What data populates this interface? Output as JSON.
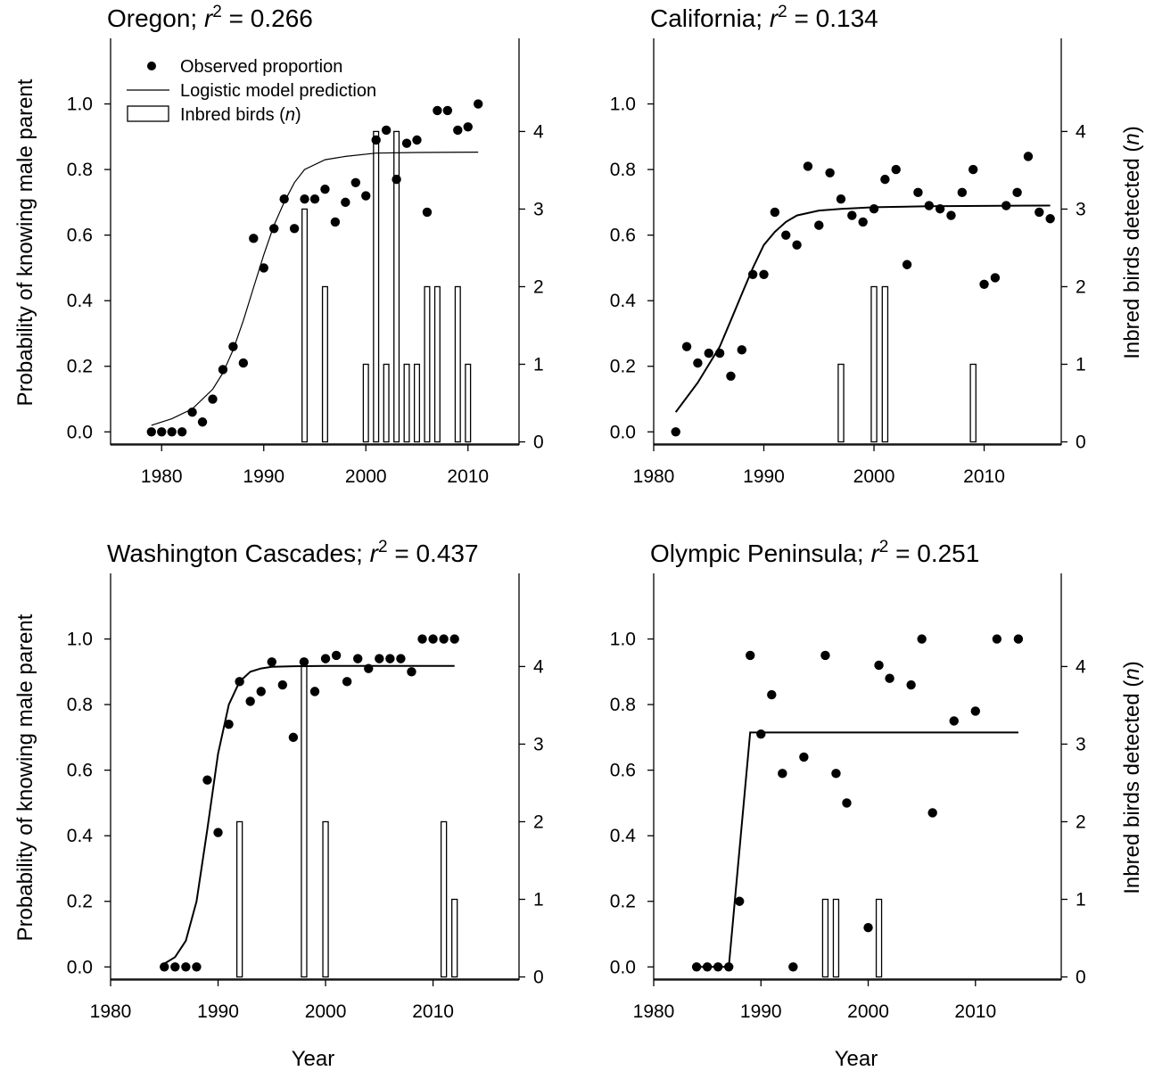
{
  "figure": {
    "colors": {
      "ink": "#000000",
      "bar_fill": "#ffffff",
      "background": "#ffffff"
    },
    "ylabel_left": "Probability of knowing male parent",
    "ylabel_right": "Inbred birds detected (n)",
    "xlabel": "Year"
  },
  "legend": {
    "items": [
      {
        "marker": "dot",
        "label": "Observed proportion"
      },
      {
        "marker": "line",
        "label": "Logistic model prediction"
      },
      {
        "marker": "bar",
        "label": "Inbred birds (n)"
      }
    ]
  },
  "chart_data": [
    {
      "type": "scatter",
      "region": "Oregon",
      "r2": "0.266",
      "title": "Oregon; r2 = 0.266",
      "xlim": [
        1975,
        2015
      ],
      "ylim": [
        -0.04,
        1.2
      ],
      "y2lim": [
        -0.04,
        5.2
      ],
      "xticks": [
        1980,
        1990,
        2000,
        2010
      ],
      "yticks": [
        0.0,
        0.2,
        0.4,
        0.6,
        0.8,
        1.0
      ],
      "y2ticks": [
        0,
        1,
        2,
        3,
        4
      ],
      "observed": {
        "x": [
          1979,
          1980,
          1981,
          1982,
          1983,
          1984,
          1985,
          1986,
          1987,
          1988,
          1989,
          1990,
          1991,
          1992,
          1993,
          1994,
          1995,
          1996,
          1997,
          1998,
          1999,
          2000,
          2001,
          2002,
          2003,
          2004,
          2005,
          2006,
          2007,
          2008,
          2009,
          2010,
          2011
        ],
        "y": [
          0.0,
          0.0,
          0.0,
          0.0,
          0.06,
          0.03,
          0.1,
          0.19,
          0.26,
          0.21,
          0.59,
          0.5,
          0.62,
          0.71,
          0.62,
          0.71,
          0.71,
          0.74,
          0.64,
          0.7,
          0.76,
          0.72,
          0.89,
          0.92,
          0.77,
          0.88,
          0.89,
          0.67,
          0.98,
          0.98,
          0.92,
          0.93,
          1.0
        ]
      },
      "model": {
        "x": [
          1979,
          1981,
          1983,
          1985,
          1986,
          1987,
          1988,
          1989,
          1990,
          1991,
          1992,
          1993,
          1994,
          1996,
          1998,
          2001,
          2005,
          2011
        ],
        "y": [
          0.02,
          0.04,
          0.07,
          0.13,
          0.18,
          0.25,
          0.34,
          0.44,
          0.54,
          0.63,
          0.7,
          0.76,
          0.8,
          0.83,
          0.84,
          0.85,
          0.852,
          0.853
        ]
      },
      "inbred": {
        "x": [
          1994,
          1996,
          2000,
          2001,
          2002,
          2003,
          2004,
          2005,
          2006,
          2007,
          2009,
          2010
        ],
        "n": [
          3,
          2,
          1,
          4,
          1,
          4,
          1,
          1,
          2,
          2,
          2,
          1
        ]
      }
    },
    {
      "type": "scatter",
      "region": "California",
      "r2": "0.134",
      "title": "California; r2 = 0.134",
      "xlim": [
        1980,
        2017
      ],
      "ylim": [
        -0.04,
        1.2
      ],
      "y2lim": [
        -0.04,
        5.2
      ],
      "xticks": [
        1980,
        1990,
        2000,
        2010
      ],
      "yticks": [
        0.0,
        0.2,
        0.4,
        0.6,
        0.8,
        1.0
      ],
      "y2ticks": [
        0,
        1,
        2,
        3,
        4
      ],
      "observed": {
        "x": [
          1982,
          1983,
          1984,
          1985,
          1986,
          1987,
          1988,
          1989,
          1990,
          1991,
          1992,
          1993,
          1994,
          1995,
          1996,
          1997,
          1998,
          1999,
          2000,
          2001,
          2002,
          2003,
          2004,
          2005,
          2006,
          2007,
          2008,
          2009,
          2010,
          2011,
          2012,
          2013,
          2014,
          2015,
          2016
        ],
        "y": [
          0.0,
          0.26,
          0.21,
          0.24,
          0.24,
          0.17,
          0.25,
          0.48,
          0.48,
          0.67,
          0.6,
          0.57,
          0.81,
          0.63,
          0.79,
          0.71,
          0.66,
          0.64,
          0.68,
          0.77,
          0.8,
          0.51,
          0.73,
          0.69,
          0.68,
          0.66,
          0.73,
          0.8,
          0.45,
          0.47,
          0.69,
          0.73,
          0.84,
          0.67,
          0.65
        ]
      },
      "model": {
        "x": [
          1982,
          1984,
          1986,
          1987,
          1988,
          1989,
          1990,
          1991,
          1992,
          1993,
          1995,
          1997,
          2000,
          2005,
          2010,
          2016
        ],
        "y": [
          0.06,
          0.15,
          0.26,
          0.34,
          0.42,
          0.5,
          0.57,
          0.61,
          0.64,
          0.66,
          0.675,
          0.68,
          0.685,
          0.688,
          0.689,
          0.69
        ]
      },
      "inbred": {
        "x": [
          1997,
          2000,
          2001,
          2009
        ],
        "n": [
          1,
          2,
          2,
          1
        ]
      }
    },
    {
      "type": "scatter",
      "region": "Washington Cascades",
      "r2": "0.437",
      "title": "Washington Cascades; r2 = 0.437",
      "xlim": [
        1980,
        2018
      ],
      "ylim": [
        -0.04,
        1.2
      ],
      "y2lim": [
        -0.04,
        5.2
      ],
      "xticks": [
        1980,
        1990,
        2000,
        2010
      ],
      "yticks": [
        0.0,
        0.2,
        0.4,
        0.6,
        0.8,
        1.0
      ],
      "y2ticks": [
        0,
        1,
        2,
        3,
        4
      ],
      "observed": {
        "x": [
          1985,
          1986,
          1987,
          1988,
          1989,
          1990,
          1991,
          1992,
          1993,
          1994,
          1995,
          1996,
          1997,
          1998,
          1999,
          2000,
          2001,
          2002,
          2003,
          2004,
          2005,
          2006,
          2007,
          2008,
          2009,
          2010,
          2011,
          2012
        ],
        "y": [
          0.0,
          0.0,
          0.0,
          0.0,
          0.57,
          0.41,
          0.74,
          0.87,
          0.81,
          0.84,
          0.93,
          0.86,
          0.7,
          0.93,
          0.84,
          0.94,
          0.95,
          0.87,
          0.94,
          0.91,
          0.94,
          0.94,
          0.94,
          0.9,
          1.0,
          1.0,
          1.0,
          1.0
        ]
      },
      "model": {
        "x": [
          1985,
          1986,
          1987,
          1988,
          1989,
          1990,
          1991,
          1992,
          1993,
          1994,
          1995,
          1997,
          2000,
          2005,
          2012
        ],
        "y": [
          0.01,
          0.03,
          0.08,
          0.2,
          0.42,
          0.65,
          0.8,
          0.87,
          0.9,
          0.91,
          0.915,
          0.917,
          0.918,
          0.918,
          0.918
        ]
      },
      "inbred": {
        "x": [
          1992,
          1998,
          2000,
          2011,
          2012
        ],
        "n": [
          2,
          4,
          2,
          2,
          1
        ]
      }
    },
    {
      "type": "scatter",
      "region": "Olympic Peninsula",
      "r2": "0.251",
      "title": "Olympic Peninsula; r2 = 0.251",
      "xlim": [
        1980,
        2018
      ],
      "ylim": [
        -0.04,
        1.2
      ],
      "y2lim": [
        -0.04,
        5.2
      ],
      "xticks": [
        1980,
        1990,
        2000,
        2010
      ],
      "yticks": [
        0.0,
        0.2,
        0.4,
        0.6,
        0.8,
        1.0
      ],
      "y2ticks": [
        0,
        1,
        2,
        3,
        4
      ],
      "observed": {
        "x": [
          1984,
          1985,
          1986,
          1987,
          1988,
          1989,
          1990,
          1991,
          1992,
          1993,
          1994,
          1996,
          1997,
          1998,
          2000,
          2001,
          2002,
          2004,
          2005,
          2006,
          2008,
          2010,
          2012,
          2014
        ],
        "y": [
          0.0,
          0.0,
          0.0,
          0.0,
          0.2,
          0.95,
          0.71,
          0.83,
          0.59,
          0.0,
          0.64,
          0.95,
          0.59,
          0.5,
          0.12,
          0.92,
          0.88,
          0.86,
          1.0,
          0.47,
          0.75,
          0.78,
          1.0,
          1.0
        ]
      },
      "model": {
        "x": [
          1984,
          1987,
          1989,
          2014
        ],
        "y": [
          0.0,
          0.0,
          0.715,
          0.715
        ]
      },
      "inbred": {
        "x": [
          1996,
          1997,
          2001
        ],
        "n": [
          1,
          1,
          1
        ]
      }
    }
  ]
}
